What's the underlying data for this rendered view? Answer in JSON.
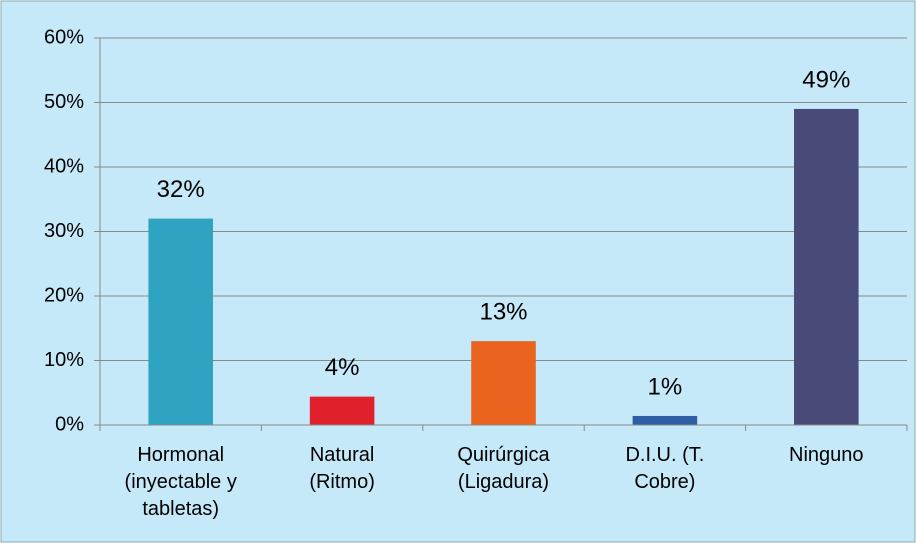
{
  "chart_data": {
    "type": "bar",
    "categories": [
      "Hormonal\n(inyectable y\ntabletas)",
      "Natural\n(Ritmo)",
      "Quirúrgica\n(Ligadura)",
      "D.I.U. (T.\nCobre)",
      "Ninguno"
    ],
    "values": [
      32,
      4.4,
      13,
      1.4,
      49
    ],
    "value_labels": [
      "32%",
      "4%",
      "13%",
      "1%",
      "49%"
    ],
    "colors": [
      "#2ea3c2",
      "#e0202a",
      "#ea6420",
      "#2e5fa5",
      "#4a4a78"
    ],
    "ylim": [
      0,
      60
    ],
    "yticks": [
      {
        "value": 0,
        "label": "0%"
      },
      {
        "value": 10,
        "label": "10%"
      },
      {
        "value": 20,
        "label": "20%"
      },
      {
        "value": 30,
        "label": "30%"
      },
      {
        "value": 40,
        "label": "40%"
      },
      {
        "value": 50,
        "label": "50%"
      },
      {
        "value": 60,
        "label": "60%"
      }
    ],
    "grid": true
  }
}
